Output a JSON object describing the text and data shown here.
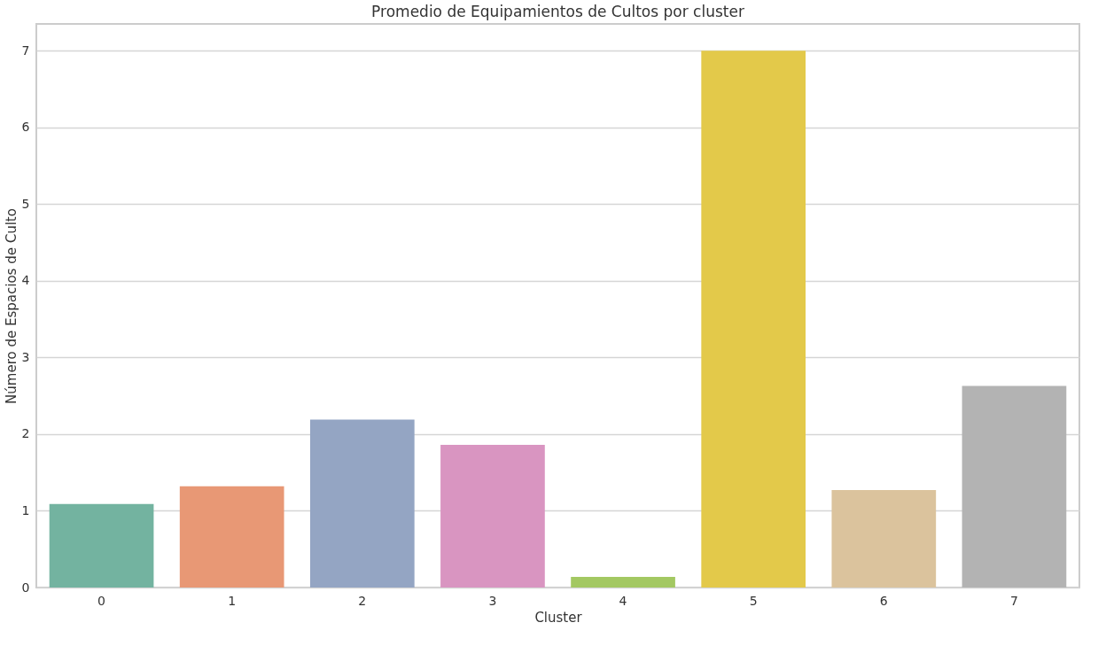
{
  "chart_data": {
    "type": "bar",
    "title": "Promedio de Equipamientos de Cultos por cluster",
    "xlabel": "Cluster",
    "ylabel": "Número de Espacios de Culto",
    "categories": [
      "0",
      "1",
      "2",
      "3",
      "4",
      "5",
      "6",
      "7"
    ],
    "values": [
      1.09,
      1.32,
      2.19,
      1.86,
      0.14,
      7.0,
      1.27,
      2.63
    ],
    "colors": [
      "#73b3a0",
      "#e89875",
      "#94a5c3",
      "#d995c1",
      "#a3c862",
      "#e3c94a",
      "#dbc39d",
      "#b3b3b3"
    ],
    "ylim": [
      0,
      7.35
    ],
    "yticks": [
      0,
      1,
      2,
      3,
      4,
      5,
      6,
      7
    ],
    "grid": "y"
  }
}
